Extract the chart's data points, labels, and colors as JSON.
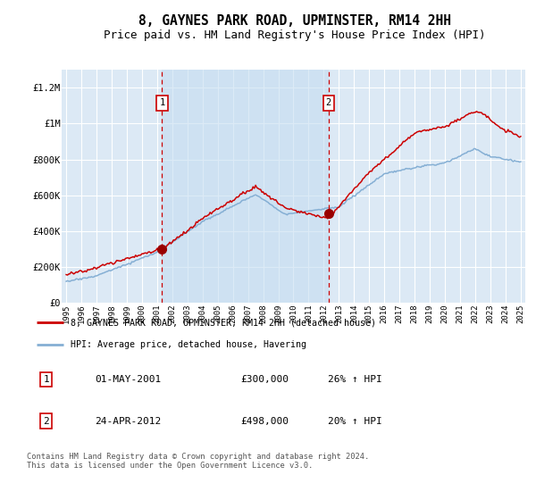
{
  "title": "8, GAYNES PARK ROAD, UPMINSTER, RM14 2HH",
  "subtitle": "Price paid vs. HM Land Registry's House Price Index (HPI)",
  "title_fontsize": 10.5,
  "subtitle_fontsize": 9,
  "plot_bg_color": "#dce9f5",
  "shade_color": "#c5ddf0",
  "grid_color": "#ffffff",
  "red_color": "#cc0000",
  "blue_color": "#85afd4",
  "ylim": [
    0,
    1300000
  ],
  "yticks": [
    0,
    200000,
    400000,
    600000,
    800000,
    1000000,
    1200000
  ],
  "ytick_labels": [
    "£0",
    "£200K",
    "£400K",
    "£600K",
    "£800K",
    "£1M",
    "£1.2M"
  ],
  "xmin": 1994.7,
  "xmax": 2025.3,
  "sale1_x": 2001.33,
  "sale1_y": 300000,
  "sale2_x": 2012.32,
  "sale2_y": 498000,
  "legend_line1": "8, GAYNES PARK ROAD, UPMINSTER, RM14 2HH (detached house)",
  "legend_line2": "HPI: Average price, detached house, Havering",
  "table_rows": [
    [
      "1",
      "01-MAY-2001",
      "£300,000",
      "26% ↑ HPI"
    ],
    [
      "2",
      "24-APR-2012",
      "£498,000",
      "20% ↑ HPI"
    ]
  ],
  "footnote": "Contains HM Land Registry data © Crown copyright and database right 2024.\nThis data is licensed under the Open Government Licence v3.0."
}
